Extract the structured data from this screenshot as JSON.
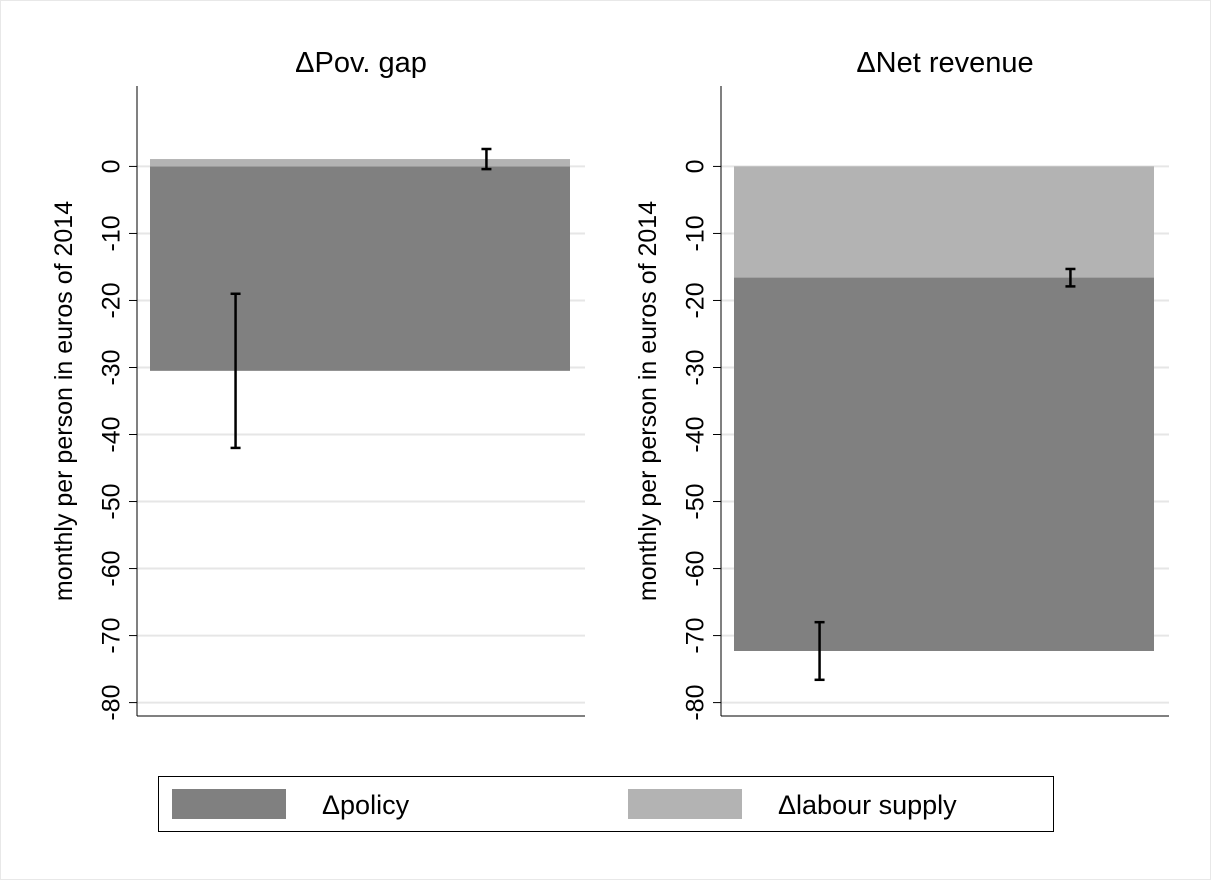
{
  "chart_data": [
    {
      "type": "bar",
      "title": "ΔPov. gap",
      "y_label": "monthly per person in euros of 2014",
      "series": [
        {
          "name": "Δpolicy",
          "color": "#808080",
          "values": [
            -30.5
          ],
          "errors": [
            11.5
          ]
        },
        {
          "name": "Δlabour supply",
          "color": "#b3b3b3",
          "values": [
            1.1
          ],
          "errors": [
            1.5
          ]
        }
      ],
      "ylim": [
        -82,
        12
      ],
      "yticks": [
        0,
        -10,
        -20,
        -30,
        -40,
        -50,
        -60,
        -70,
        -80
      ],
      "grid": true
    },
    {
      "type": "bar",
      "title": "ΔNet revenue",
      "y_label": "monthly per person in euros of 2014",
      "series": [
        {
          "name": "Δpolicy",
          "color": "#808080",
          "values": [
            -72.3
          ],
          "errors": [
            4.3
          ]
        },
        {
          "name": "Δlabour supply",
          "color": "#b3b3b3",
          "values": [
            -16.6
          ],
          "errors": [
            1.3
          ]
        }
      ],
      "ylim": [
        -82,
        12
      ],
      "yticks": [
        0,
        -10,
        -20,
        -30,
        -40,
        -50,
        -60,
        -70,
        -80
      ],
      "grid": true
    }
  ]
}
